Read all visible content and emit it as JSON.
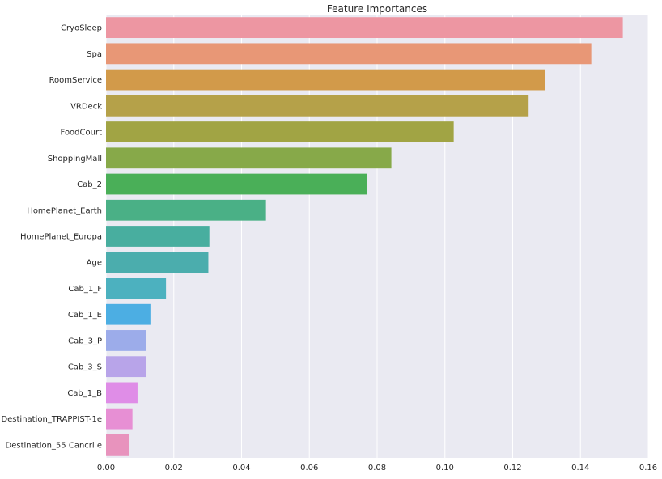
{
  "chart_data": {
    "type": "bar",
    "orientation": "horizontal",
    "title": "Feature Importances",
    "xlabel": "",
    "ylabel": "",
    "xlim": [
      0,
      0.16
    ],
    "xticks": [
      "0.00",
      "0.02",
      "0.04",
      "0.06",
      "0.08",
      "0.10",
      "0.12",
      "0.14",
      "0.16"
    ],
    "grid": true,
    "categories": [
      "CryoSleep",
      "Spa",
      "RoomService",
      "VRDeck",
      "FoodCourt",
      "ShoppingMall",
      "Cab_2",
      "HomePlanet_Earth",
      "HomePlanet_Europa",
      "Age",
      "Cab_1_F",
      "Cab_1_E",
      "Cab_3_P",
      "Cab_3_S",
      "Cab_1_B",
      "Destination_TRAPPIST-1e",
      "Destination_55 Cancri e"
    ],
    "values": [
      0.1525,
      0.1432,
      0.1296,
      0.1247,
      0.1026,
      0.0842,
      0.077,
      0.0472,
      0.0305,
      0.0302,
      0.0177,
      0.0131,
      0.0118,
      0.0118,
      0.0093,
      0.0078,
      0.0067
    ],
    "colors": [
      "#ed96a2",
      "#e89776",
      "#d29a4a",
      "#b5a149",
      "#a1a444",
      "#87a949",
      "#4aaf58",
      "#4ab086",
      "#48ae9f",
      "#4badad",
      "#4cb1bf",
      "#4caee3",
      "#9cacea",
      "#b8a4e9",
      "#df8de7",
      "#e78fd4",
      "#e893bd"
    ]
  },
  "style": {
    "background_color": "#eaeaf2",
    "grid_color": "#ffffff"
  }
}
